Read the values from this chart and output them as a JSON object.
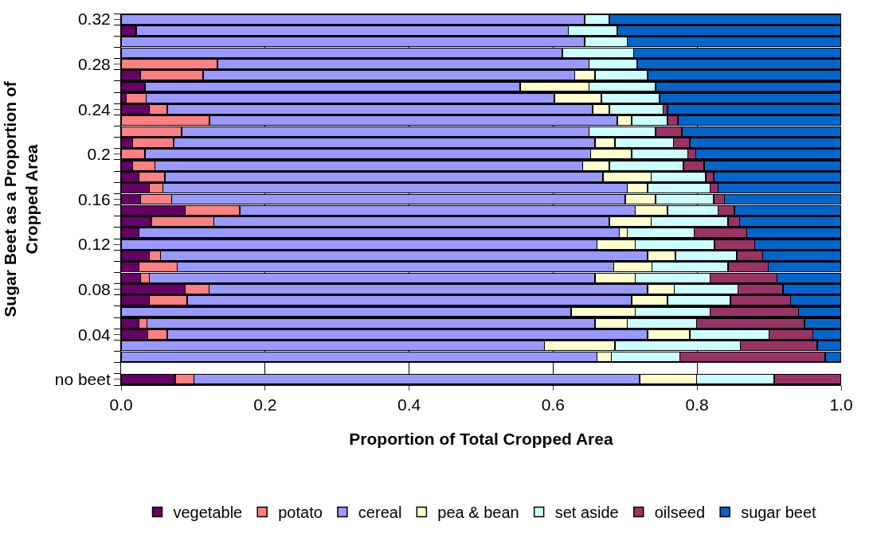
{
  "chart_data": {
    "type": "bar",
    "orientation": "horizontal",
    "stacked": true,
    "xlabel": "Proportion of Total Cropped Area",
    "ylabel": "Sugar Beet as a Proportion of\nCropped Area",
    "categories": [
      "0.32",
      null,
      null,
      null,
      "0.28",
      null,
      null,
      null,
      "0.24",
      null,
      null,
      null,
      "0.2",
      null,
      null,
      null,
      "0.16",
      null,
      null,
      null,
      "0.12",
      null,
      null,
      null,
      "0.08",
      null,
      null,
      null,
      "0.04",
      null,
      null,
      null,
      "no beet"
    ],
    "xlim": [
      0,
      1
    ],
    "xticks": [
      {
        "value": 0,
        "label": "0.0"
      },
      {
        "value": 0.2,
        "label": "0.2"
      },
      {
        "value": 0.4,
        "label": "0.4"
      },
      {
        "value": 0.6,
        "label": "0.6"
      },
      {
        "value": 0.8,
        "label": "0.8"
      },
      {
        "value": 1,
        "label": "1.0"
      }
    ],
    "grid": "x",
    "legend": "bottom",
    "series": [
      {
        "name": "vegetable",
        "color": "#660066",
        "values": [
          0,
          0.021,
          0,
          0,
          0,
          0.027,
          0.033,
          0.007,
          0.039,
          0,
          0,
          0.016,
          0,
          0.016,
          0.025,
          0.039,
          0.027,
          0.089,
          0.042,
          0.025,
          0,
          0.039,
          0.025,
          0.027,
          0.089,
          0.039,
          0,
          0.025,
          0.037,
          0,
          0,
          null,
          0.075
        ]
      },
      {
        "name": "potato",
        "color": "#ff8080",
        "values": [
          0,
          0,
          0,
          0,
          0.134,
          0.087,
          0,
          0.028,
          0.025,
          0.123,
          0.084,
          0.057,
          0.033,
          0.031,
          0.036,
          0.019,
          0.043,
          0.076,
          0.087,
          0,
          0,
          0.016,
          0.053,
          0.012,
          0.033,
          0.053,
          0,
          0.011,
          0.027,
          0,
          0,
          null,
          0.026
        ]
      },
      {
        "name": "cereal",
        "color": "#9999ff",
        "values": [
          0.644,
          0.6,
          0.644,
          0.613,
          0.516,
          0.516,
          0.521,
          0.567,
          0.591,
          0.566,
          0.566,
          0.585,
          0.619,
          0.594,
          0.608,
          0.645,
          0.63,
          0.549,
          0.549,
          0.667,
          0.661,
          0.676,
          0.606,
          0.619,
          0.609,
          0.617,
          0.625,
          0.622,
          0.667,
          0.588,
          0.661,
          null,
          0.619
        ]
      },
      {
        "name": "pea & bean",
        "color": "#ffffcc",
        "values": [
          0,
          0,
          0,
          0,
          0,
          0.028,
          0.096,
          0.065,
          0.023,
          0.02,
          0,
          0.028,
          0.057,
          0.037,
          0.067,
          0.028,
          0.042,
          0.045,
          0.058,
          0.011,
          0.053,
          0.039,
          0.053,
          0.056,
          0.037,
          0.05,
          0.089,
          0.045,
          0.059,
          0.098,
          0.02,
          null,
          0.079
        ]
      },
      {
        "name": "set aside",
        "color": "#ccffff",
        "values": [
          0.034,
          0.068,
          0.059,
          0.099,
          0.067,
          0.073,
          0.092,
          0.081,
          0.075,
          0.05,
          0.092,
          0.081,
          0.078,
          0.103,
          0.076,
          0.087,
          0.081,
          0.07,
          0.107,
          0.093,
          0.11,
          0.085,
          0.106,
          0.104,
          0.089,
          0.087,
          0.104,
          0.096,
          0.11,
          0.174,
          0.095,
          null,
          0.108
        ]
      },
      {
        "name": "oilseed",
        "color": "#993366",
        "values": [
          0,
          0,
          0,
          0,
          0,
          0,
          0,
          0,
          0.006,
          0.014,
          0.037,
          0.023,
          0.011,
          0.029,
          0.011,
          0.011,
          0.015,
          0.023,
          0.016,
          0.073,
          0.056,
          0.036,
          0.056,
          0.093,
          0.062,
          0.084,
          0.123,
          0.15,
          0.061,
          0.107,
          0.202,
          null,
          0.093
        ]
      },
      {
        "name": "sugar beet",
        "color": "#0066cc",
        "values": [
          0.322,
          0.311,
          0.297,
          0.288,
          0.283,
          0.269,
          0.258,
          0.252,
          0.241,
          0.227,
          0.221,
          0.21,
          0.202,
          0.19,
          0.177,
          0.171,
          0.162,
          0.148,
          0.141,
          0.131,
          0.12,
          0.109,
          0.101,
          0.089,
          0.081,
          0.07,
          0.059,
          0.051,
          0.039,
          0.033,
          0.022,
          null,
          null
        ]
      }
    ]
  }
}
